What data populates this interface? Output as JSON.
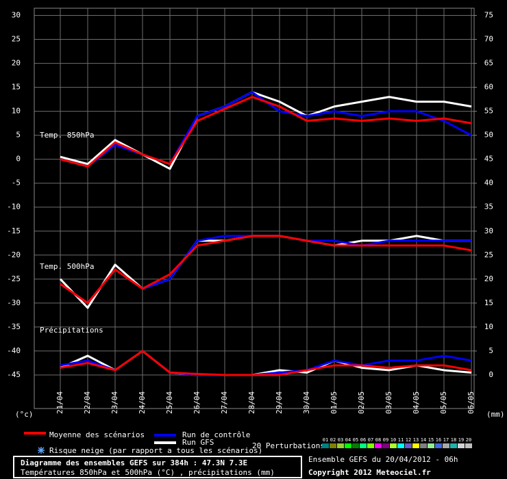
{
  "chart_data": {
    "type": "line",
    "panel_labels": {
      "t850": "Temp. 850hPa",
      "t500": "Temp. 500hPa",
      "precip": "Précipitations"
    },
    "y_unit": "(°c)",
    "y2_unit": "(mm)",
    "categories": [
      "21/04",
      "22/04",
      "23/04",
      "24/04",
      "25/04",
      "26/04",
      "27/04",
      "28/04",
      "29/04",
      "30/04",
      "01/05",
      "02/05",
      "03/05",
      "04/05",
      "05/05",
      "06/05"
    ],
    "ylim": [
      -52,
      31.5
    ],
    "yticks": [
      30,
      25,
      20,
      15,
      10,
      5,
      0,
      -5,
      -10,
      -15,
      -20,
      -25,
      -30,
      -35,
      -40,
      -45
    ],
    "y2lim": [
      -7,
      76.5
    ],
    "y2ticks": [
      75,
      70,
      65,
      60,
      55,
      50,
      45,
      40,
      35,
      30,
      25,
      20,
      15,
      10,
      5,
      0
    ],
    "grid": true,
    "series": [
      {
        "name": "Run GFS",
        "color": "#ffffff",
        "t850": [
          0.5,
          -1,
          4,
          1,
          -2,
          9,
          11,
          14,
          12,
          9,
          11,
          12,
          13,
          12,
          12,
          11
        ],
        "t500": [
          -25,
          -31,
          -22,
          -27,
          -25,
          -17,
          -17,
          -16,
          -16,
          -17,
          -18,
          -17,
          -17,
          -16,
          -17,
          -17
        ],
        "precip": [
          1.5,
          4,
          1,
          5,
          0.5,
          0,
          0,
          0,
          1,
          0.5,
          3,
          1.5,
          1,
          2,
          1,
          0.5
        ]
      },
      {
        "name": "Run de contrôle",
        "color": "#0000ff",
        "t850": [
          0,
          -1.5,
          3,
          1,
          -1,
          9,
          11,
          14,
          10,
          9,
          10,
          9,
          10,
          10,
          8,
          5
        ],
        "t500": [
          -26,
          -30,
          -23,
          -27,
          -25,
          -17,
          -16,
          -16,
          -16,
          -17,
          -17,
          -18,
          -17,
          -17,
          -17,
          -17
        ],
        "precip": [
          2,
          3,
          1,
          5,
          0.5,
          0,
          0,
          0,
          0.5,
          1,
          3,
          2,
          3,
          3,
          4,
          3
        ]
      },
      {
        "name": "Moyenne des scénarios",
        "color": "#ff0000",
        "t850": [
          0,
          -1.5,
          3.5,
          1,
          -1,
          8,
          10.5,
          13,
          11,
          8,
          8.5,
          8,
          8.5,
          8,
          8.5,
          7.5
        ],
        "t500": [
          -26,
          -30,
          -23,
          -27,
          -24,
          -18,
          -17,
          -16,
          -16,
          -17,
          -18,
          -18,
          -18,
          -18,
          -18,
          -19
        ],
        "precip": [
          1.5,
          2.5,
          1,
          5,
          0.5,
          0.2,
          0,
          0,
          0,
          1,
          2,
          2,
          1.5,
          2,
          2,
          1
        ]
      }
    ],
    "snow_label": "Risque neige (par rapport a tous les scénarios)",
    "perturbations": {
      "label": "20 Perturbations",
      "members": [
        {
          "name": "01",
          "color": "#008080"
        },
        {
          "name": "02",
          "color": "#808000"
        },
        {
          "name": "03",
          "color": "#9acd32"
        },
        {
          "name": "04",
          "color": "#00ff00"
        },
        {
          "name": "05",
          "color": "#008000"
        },
        {
          "name": "06",
          "color": "#00ff7f"
        },
        {
          "name": "07",
          "color": "#7fff00"
        },
        {
          "name": "08",
          "color": "#ff00ff"
        },
        {
          "name": "09",
          "color": "#800080"
        },
        {
          "name": "10",
          "color": "#adff2f"
        },
        {
          "name": "11",
          "color": "#00ffff"
        },
        {
          "name": "12",
          "color": "#6a5acd"
        },
        {
          "name": "13",
          "color": "#ffff00"
        },
        {
          "name": "14",
          "color": "#808080"
        },
        {
          "name": "15",
          "color": "#90ee90"
        },
        {
          "name": "16",
          "color": "#4169e1"
        },
        {
          "name": "17",
          "color": "#a9a9a9"
        },
        {
          "name": "18",
          "color": "#20b2aa"
        },
        {
          "name": "19",
          "color": "#d3d3d3"
        },
        {
          "name": "20",
          "color": "#c0c0c0"
        }
      ]
    },
    "box_title": "Diagramme des ensembles GEFS sur 384h : 47.3N 7.3E",
    "box_subtitle": "Températures 850hPa et 500hPa (°C) , précipitations (mm)",
    "run_info": "Ensemble GEFS du 20/04/2012 - 06h",
    "copyright": "Copyright 2012 Meteociel.fr"
  }
}
